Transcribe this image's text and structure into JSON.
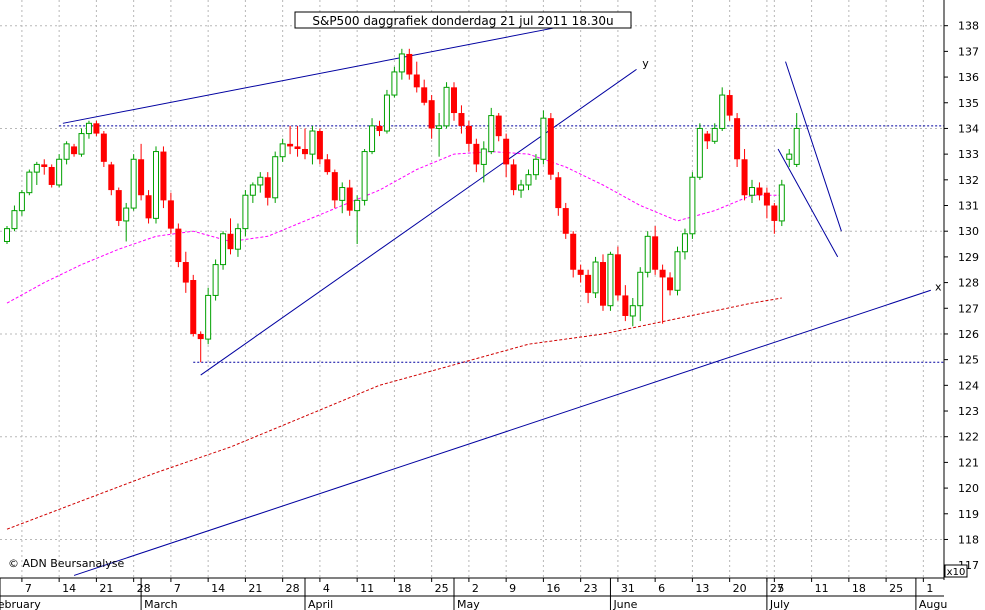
{
  "chart_data": {
    "type": "candlestick",
    "title": "S&P500 daggrafiek donderdag 21 jul 2011 18.30u",
    "copyright": "© ADN Beursanalyse",
    "scale_note": "x10",
    "ylim": [
      116.5,
      139
    ],
    "y_ticks": [
      117,
      118,
      119,
      120,
      121,
      122,
      123,
      124,
      125,
      126,
      127,
      128,
      129,
      130,
      131,
      132,
      133,
      134,
      135,
      136,
      137,
      138
    ],
    "x_ticks": [
      "7",
      "14",
      "21",
      "28",
      "7",
      "14",
      "21",
      "28",
      "4",
      "11",
      "18",
      "25",
      "2",
      "9",
      "16",
      "23",
      "31",
      "6",
      "13",
      "20",
      "27",
      "5",
      "11",
      "18",
      "25",
      "1"
    ],
    "months": [
      "February",
      "March",
      "April",
      "May",
      "June",
      "July",
      "Augu"
    ],
    "trend_labels": [
      "y",
      "y",
      "x"
    ],
    "horizontal_levels": [
      134.1,
      124.9
    ],
    "colors": {
      "up": "#00a000",
      "down": "#ff0000",
      "trend": "#0000a0",
      "ma_short": "#ff00ff",
      "ma_long": "#d00000",
      "grid": "#b8b8b8"
    },
    "candles": [
      [
        129.6,
        130.2,
        129.5,
        130.1
      ],
      [
        130.1,
        131.0,
        130.0,
        130.8
      ],
      [
        130.8,
        131.6,
        130.6,
        131.5
      ],
      [
        131.5,
        132.4,
        131.4,
        132.3
      ],
      [
        132.3,
        132.7,
        131.8,
        132.6
      ],
      [
        132.6,
        132.8,
        132.2,
        132.5
      ],
      [
        132.5,
        132.6,
        131.7,
        131.8
      ],
      [
        131.8,
        133.0,
        131.7,
        132.8
      ],
      [
        132.8,
        133.5,
        132.6,
        133.4
      ],
      [
        133.3,
        133.4,
        132.9,
        133.0
      ],
      [
        133.0,
        134.0,
        132.9,
        133.8
      ],
      [
        133.8,
        134.3,
        133.6,
        134.2
      ],
      [
        134.2,
        134.3,
        133.7,
        133.8
      ],
      [
        133.8,
        133.9,
        132.5,
        132.7
      ],
      [
        132.6,
        132.7,
        131.4,
        131.6
      ],
      [
        131.6,
        131.7,
        130.2,
        130.4
      ],
      [
        130.4,
        131.1,
        129.6,
        130.9
      ],
      [
        130.9,
        133.0,
        130.8,
        132.8
      ],
      [
        132.8,
        133.4,
        131.2,
        131.4
      ],
      [
        131.4,
        131.6,
        130.3,
        130.5
      ],
      [
        130.5,
        133.3,
        130.3,
        133.1
      ],
      [
        133.1,
        133.3,
        130.9,
        131.2
      ],
      [
        131.2,
        131.5,
        129.9,
        130.1
      ],
      [
        130.1,
        130.3,
        128.6,
        128.8
      ],
      [
        128.8,
        129.2,
        127.6,
        128.0
      ],
      [
        128.1,
        128.3,
        125.9,
        126.0
      ],
      [
        126.0,
        126.1,
        124.9,
        125.8
      ],
      [
        125.8,
        127.8,
        125.6,
        127.5
      ],
      [
        127.5,
        128.9,
        127.3,
        128.7
      ],
      [
        128.7,
        130.0,
        128.5,
        129.9
      ],
      [
        129.9,
        130.5,
        129.1,
        129.3
      ],
      [
        129.3,
        130.3,
        129.0,
        130.1
      ],
      [
        130.1,
        131.6,
        129.8,
        131.4
      ],
      [
        131.4,
        131.9,
        131.1,
        131.8
      ],
      [
        131.8,
        132.3,
        131.5,
        132.1
      ],
      [
        132.1,
        132.3,
        131.0,
        131.3
      ],
      [
        131.3,
        133.1,
        131.1,
        132.9
      ],
      [
        132.9,
        133.6,
        132.7,
        133.4
      ],
      [
        133.4,
        134.1,
        133.0,
        133.3
      ],
      [
        133.3,
        134.1,
        132.9,
        133.2
      ],
      [
        133.2,
        134.0,
        132.8,
        133.0
      ],
      [
        133.0,
        134.1,
        132.6,
        133.9
      ],
      [
        133.9,
        134.0,
        132.6,
        132.8
      ],
      [
        132.8,
        133.0,
        132.2,
        132.3
      ],
      [
        132.3,
        132.4,
        130.9,
        131.2
      ],
      [
        131.2,
        131.9,
        130.7,
        131.7
      ],
      [
        131.7,
        132.0,
        130.6,
        130.8
      ],
      [
        130.8,
        131.4,
        129.5,
        131.2
      ],
      [
        131.2,
        133.2,
        131.0,
        133.1
      ],
      [
        133.1,
        134.4,
        133.0,
        134.1
      ],
      [
        134.1,
        134.3,
        133.7,
        133.9
      ],
      [
        133.9,
        135.5,
        133.8,
        135.3
      ],
      [
        135.3,
        136.4,
        135.2,
        136.2
      ],
      [
        136.2,
        137.1,
        135.9,
        136.9
      ],
      [
        136.9,
        137.1,
        135.9,
        136.1
      ],
      [
        136.1,
        136.6,
        135.4,
        135.6
      ],
      [
        135.6,
        135.9,
        134.9,
        135.0
      ],
      [
        135.1,
        135.3,
        133.6,
        134.0
      ],
      [
        134.0,
        134.6,
        132.9,
        134.1
      ],
      [
        134.1,
        135.8,
        134.0,
        135.6
      ],
      [
        135.6,
        135.8,
        134.3,
        134.6
      ],
      [
        134.6,
        134.9,
        133.8,
        134.1
      ],
      [
        134.1,
        134.3,
        133.1,
        133.4
      ],
      [
        133.4,
        133.6,
        132.3,
        132.6
      ],
      [
        132.6,
        133.5,
        131.9,
        133.2
      ],
      [
        133.1,
        134.8,
        133.0,
        134.5
      ],
      [
        134.5,
        134.6,
        133.5,
        133.7
      ],
      [
        133.6,
        133.8,
        132.1,
        132.6
      ],
      [
        132.6,
        132.8,
        131.4,
        131.6
      ],
      [
        131.6,
        132.0,
        131.3,
        131.8
      ],
      [
        131.8,
        132.4,
        131.6,
        132.2
      ],
      [
        132.2,
        133.0,
        132.0,
        132.8
      ],
      [
        132.8,
        134.7,
        132.6,
        134.4
      ],
      [
        134.4,
        134.6,
        132.0,
        132.2
      ],
      [
        132.1,
        132.3,
        130.6,
        130.9
      ],
      [
        130.9,
        131.1,
        129.7,
        129.9
      ],
      [
        129.9,
        130.0,
        128.2,
        128.5
      ],
      [
        128.5,
        128.7,
        128.0,
        128.3
      ],
      [
        128.3,
        128.5,
        127.2,
        127.6
      ],
      [
        127.6,
        129.0,
        127.4,
        128.8
      ],
      [
        128.8,
        129.1,
        126.9,
        127.1
      ],
      [
        127.1,
        129.2,
        126.9,
        129.1
      ],
      [
        129.1,
        129.4,
        127.3,
        127.5
      ],
      [
        127.5,
        127.9,
        126.5,
        126.7
      ],
      [
        126.7,
        127.4,
        126.3,
        127.1
      ],
      [
        127.1,
        128.6,
        126.5,
        128.4
      ],
      [
        128.4,
        130.0,
        128.2,
        129.8
      ],
      [
        129.8,
        130.2,
        128.3,
        128.5
      ],
      [
        128.5,
        128.7,
        126.4,
        128.2
      ],
      [
        128.2,
        128.4,
        127.5,
        127.7
      ],
      [
        127.7,
        129.4,
        127.5,
        129.2
      ],
      [
        129.2,
        130.1,
        128.9,
        129.9
      ],
      [
        129.9,
        132.3,
        129.7,
        132.1
      ],
      [
        132.1,
        134.2,
        132.0,
        134.0
      ],
      [
        133.8,
        133.9,
        133.2,
        133.5
      ],
      [
        133.5,
        134.2,
        133.4,
        134.0
      ],
      [
        134.0,
        135.6,
        133.9,
        135.3
      ],
      [
        135.3,
        135.5,
        134.3,
        134.5
      ],
      [
        134.4,
        134.6,
        132.5,
        132.8
      ],
      [
        132.8,
        133.2,
        131.2,
        131.4
      ],
      [
        131.4,
        132.0,
        131.1,
        131.7
      ],
      [
        131.7,
        131.9,
        131.2,
        131.4
      ],
      [
        131.5,
        131.7,
        130.5,
        131.0
      ],
      [
        131.0,
        131.1,
        129.9,
        130.4
      ],
      [
        130.4,
        132.0,
        130.2,
        131.8
      ],
      [
        132.8,
        133.2,
        132.5,
        133.0
      ],
      [
        132.6,
        134.6,
        132.5,
        134.0
      ]
    ],
    "ma_short": [
      [
        0,
        127.2
      ],
      [
        5,
        128.0
      ],
      [
        10,
        128.7
      ],
      [
        15,
        129.3
      ],
      [
        20,
        129.8
      ],
      [
        25,
        130.0
      ],
      [
        30,
        129.6
      ],
      [
        35,
        129.8
      ],
      [
        40,
        130.4
      ],
      [
        45,
        131.0
      ],
      [
        50,
        131.6
      ],
      [
        55,
        132.4
      ],
      [
        60,
        133.0
      ],
      [
        65,
        133.1
      ],
      [
        70,
        133.0
      ],
      [
        75,
        132.5
      ],
      [
        80,
        131.8
      ],
      [
        85,
        131.0
      ],
      [
        90,
        130.4
      ],
      [
        95,
        130.8
      ],
      [
        100,
        131.4
      ],
      [
        104,
        131.4
      ]
    ],
    "ma_long": [
      [
        0,
        118.4
      ],
      [
        10,
        119.5
      ],
      [
        20,
        120.6
      ],
      [
        30,
        121.6
      ],
      [
        40,
        122.8
      ],
      [
        50,
        124.0
      ],
      [
        60,
        124.8
      ],
      [
        70,
        125.6
      ],
      [
        80,
        126.0
      ],
      [
        90,
        126.6
      ],
      [
        100,
        127.2
      ],
      [
        104,
        127.4
      ]
    ],
    "trendlines": [
      {
        "from": [
          7.5,
          134.2
        ],
        "to": [
          75,
          138.0
        ]
      },
      {
        "from": [
          26,
          124.4
        ],
        "to": [
          84.5,
          136.3
        ]
      },
      {
        "from": [
          9,
          116.6
        ],
        "to": [
          124,
          127.7
        ]
      },
      {
        "from": [
          104.5,
          136.6
        ],
        "to": [
          112,
          130.0
        ]
      },
      {
        "from": [
          103.5,
          133.2
        ],
        "to": [
          111.5,
          129.0
        ]
      }
    ]
  }
}
